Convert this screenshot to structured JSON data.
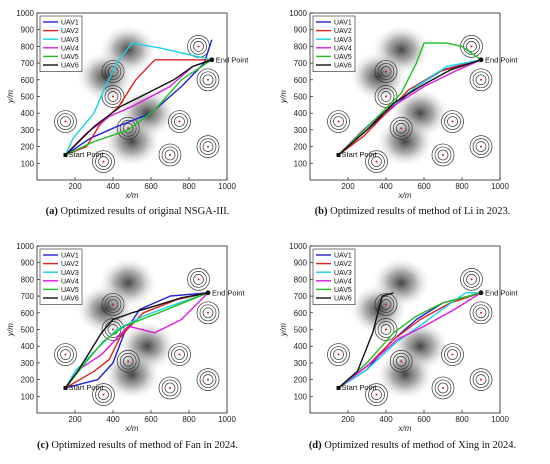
{
  "chart_data": [
    {
      "type": "line",
      "panel_label": "(a)",
      "caption": "Optimized results of original NSGA-III.",
      "xlabel": "x/m",
      "ylabel": "y/m",
      "xlim": [
        0,
        1000
      ],
      "ylim": [
        0,
        1000
      ],
      "xticks": [
        200,
        400,
        600,
        800,
        1000
      ],
      "yticks": [
        100,
        200,
        300,
        400,
        500,
        600,
        700,
        800,
        900,
        1000
      ],
      "start_label": "Start Point",
      "end_label": "End Point",
      "start": [
        150,
        150
      ],
      "end": [
        920,
        720
      ],
      "legend": [
        "UAV1",
        "UAV2",
        "UAV3",
        "UAV4",
        "UAV5",
        "UAV6"
      ],
      "series": [
        {
          "name": "UAV1",
          "color": "#1f1fd6",
          "points": [
            [
              150,
              150
            ],
            [
              280,
              250
            ],
            [
              420,
              320
            ],
            [
              600,
              400
            ],
            [
              760,
              560
            ],
            [
              880,
              700
            ],
            [
              920,
              840
            ]
          ]
        },
        {
          "name": "UAV2",
          "color": "#e02020",
          "points": [
            [
              150,
              150
            ],
            [
              260,
              200
            ],
            [
              330,
              330
            ],
            [
              430,
              440
            ],
            [
              520,
              600
            ],
            [
              620,
              720
            ],
            [
              720,
              720
            ],
            [
              920,
              720
            ]
          ]
        },
        {
          "name": "UAV3",
          "color": "#19d3e6",
          "points": [
            [
              150,
              150
            ],
            [
              190,
              250
            ],
            [
              300,
              400
            ],
            [
              360,
              560
            ],
            [
              420,
              700
            ],
            [
              500,
              820
            ],
            [
              650,
              790
            ],
            [
              920,
              720
            ]
          ]
        },
        {
          "name": "UAV4",
          "color": "#e018e0",
          "points": [
            [
              150,
              150
            ],
            [
              260,
              280
            ],
            [
              380,
              380
            ],
            [
              500,
              440
            ],
            [
              700,
              560
            ],
            [
              820,
              680
            ],
            [
              920,
              720
            ]
          ]
        },
        {
          "name": "UAV5",
          "color": "#20c020",
          "points": [
            [
              150,
              150
            ],
            [
              300,
              230
            ],
            [
              480,
              300
            ],
            [
              620,
              420
            ],
            [
              760,
              600
            ],
            [
              920,
              720
            ]
          ]
        },
        {
          "name": "UAV6",
          "color": "#111111",
          "points": [
            [
              150,
              150
            ],
            [
              300,
              320
            ],
            [
              440,
              440
            ],
            [
              580,
              520
            ],
            [
              720,
              600
            ],
            [
              820,
              680
            ],
            [
              920,
              720
            ]
          ]
        }
      ]
    },
    {
      "type": "line",
      "panel_label": "(b)",
      "caption": "Optimized results of method of Li in 2023.",
      "xlabel": "x/m",
      "ylabel": "y/m",
      "xlim": [
        0,
        1000
      ],
      "ylim": [
        0,
        1000
      ],
      "xticks": [
        200,
        400,
        600,
        800,
        1000
      ],
      "yticks": [
        100,
        200,
        300,
        400,
        500,
        600,
        700,
        800,
        900,
        1000
      ],
      "start_label": "Start Point",
      "end_label": "End Point",
      "start": [
        150,
        150
      ],
      "end": [
        900,
        720
      ],
      "legend": [
        "UAV1",
        "UAV2",
        "UAV3",
        "UAV4",
        "UAV5",
        "UAV6"
      ],
      "series": [
        {
          "name": "UAV1",
          "color": "#1f1fd6",
          "points": [
            [
              150,
              150
            ],
            [
              300,
              300
            ],
            [
              420,
              420
            ],
            [
              560,
              560
            ],
            [
              700,
              660
            ],
            [
              900,
              720
            ]
          ]
        },
        {
          "name": "UAV2",
          "color": "#e02020",
          "points": [
            [
              150,
              150
            ],
            [
              280,
              260
            ],
            [
              400,
              400
            ],
            [
              520,
              540
            ],
            [
              680,
              650
            ],
            [
              900,
              720
            ]
          ]
        },
        {
          "name": "UAV3",
          "color": "#19d3e6",
          "points": [
            [
              150,
              150
            ],
            [
              300,
              320
            ],
            [
              430,
              440
            ],
            [
              560,
              560
            ],
            [
              720,
              680
            ],
            [
              900,
              720
            ]
          ]
        },
        {
          "name": "UAV4",
          "color": "#e018e0",
          "points": [
            [
              150,
              150
            ],
            [
              280,
              300
            ],
            [
              420,
              430
            ],
            [
              600,
              560
            ],
            [
              780,
              660
            ],
            [
              900,
              720
            ]
          ]
        },
        {
          "name": "UAV5",
          "color": "#20c020",
          "points": [
            [
              150,
              150
            ],
            [
              330,
              350
            ],
            [
              480,
              520
            ],
            [
              560,
              700
            ],
            [
              600,
              820
            ],
            [
              720,
              820
            ],
            [
              800,
              800
            ],
            [
              900,
              720
            ]
          ]
        },
        {
          "name": "UAV6",
          "color": "#111111",
          "points": [
            [
              150,
              150
            ],
            [
              300,
              300
            ],
            [
              440,
              460
            ],
            [
              580,
              560
            ],
            [
              740,
              660
            ],
            [
              900,
              720
            ]
          ]
        }
      ]
    },
    {
      "type": "line",
      "panel_label": "(c)",
      "caption": "Optimized results of method of Fan in 2024.",
      "xlabel": "x/m",
      "ylabel": "y/m",
      "xlim": [
        0,
        1000
      ],
      "ylim": [
        0,
        1000
      ],
      "xticks": [
        200,
        400,
        600,
        800,
        1000
      ],
      "yticks": [
        100,
        200,
        300,
        400,
        500,
        600,
        700,
        800,
        900,
        1000
      ],
      "start_label": "Start Point",
      "end_label": "End Point",
      "start": [
        150,
        150
      ],
      "end": [
        900,
        720
      ],
      "legend": [
        "UAV1",
        "UAV2",
        "UAV3",
        "UAV4",
        "UAV5",
        "UAV6"
      ],
      "series": [
        {
          "name": "UAV1",
          "color": "#1f1fd6",
          "points": [
            [
              150,
              150
            ],
            [
              320,
              200
            ],
            [
              400,
              300
            ],
            [
              460,
              480
            ],
            [
              540,
              620
            ],
            [
              700,
              700
            ],
            [
              900,
              720
            ]
          ]
        },
        {
          "name": "UAV2",
          "color": "#e02020",
          "points": [
            [
              150,
              150
            ],
            [
              300,
              250
            ],
            [
              380,
              320
            ],
            [
              440,
              460
            ],
            [
              560,
              600
            ],
            [
              740,
              680
            ],
            [
              900,
              720
            ]
          ]
        },
        {
          "name": "UAV3",
          "color": "#19d3e6",
          "points": [
            [
              150,
              150
            ],
            [
              200,
              250
            ],
            [
              330,
              400
            ],
            [
              420,
              500
            ],
            [
              560,
              580
            ],
            [
              700,
              640
            ],
            [
              900,
              720
            ]
          ]
        },
        {
          "name": "UAV4",
          "color": "#e018e0",
          "points": [
            [
              150,
              150
            ],
            [
              220,
              260
            ],
            [
              340,
              350
            ],
            [
              480,
              520
            ],
            [
              620,
              480
            ],
            [
              760,
              560
            ],
            [
              900,
              720
            ]
          ]
        },
        {
          "name": "UAV5",
          "color": "#20c020",
          "points": [
            [
              150,
              150
            ],
            [
              240,
              280
            ],
            [
              350,
              430
            ],
            [
              460,
              520
            ],
            [
              640,
              600
            ],
            [
              900,
              720
            ]
          ]
        },
        {
          "name": "UAV6",
          "color": "#111111",
          "points": [
            [
              150,
              150
            ],
            [
              220,
              260
            ],
            [
              340,
              480
            ],
            [
              400,
              560
            ],
            [
              500,
              600
            ],
            [
              620,
              640
            ],
            [
              760,
              690
            ],
            [
              900,
              720
            ]
          ]
        }
      ]
    },
    {
      "type": "line",
      "panel_label": "(d)",
      "caption": "Optimized results of method of Xing in 2024.",
      "xlabel": "x/m",
      "ylabel": "y/m",
      "xlim": [
        0,
        1000
      ],
      "ylim": [
        0,
        1000
      ],
      "xticks": [
        200,
        400,
        600,
        800,
        1000
      ],
      "yticks": [
        100,
        200,
        300,
        400,
        500,
        600,
        700,
        800,
        900,
        1000
      ],
      "start_label": "Start Point",
      "end_label": "End Point",
      "start": [
        150,
        150
      ],
      "end": [
        900,
        720
      ],
      "legend": [
        "UAV1",
        "UAV2",
        "UAV3",
        "UAV4",
        "UAV5",
        "UAV6"
      ],
      "series": [
        {
          "name": "UAV1",
          "color": "#1f1fd6",
          "points": [
            [
              150,
              150
            ],
            [
              300,
              260
            ],
            [
              420,
              420
            ],
            [
              560,
              560
            ],
            [
              700,
              660
            ],
            [
              900,
              720
            ]
          ]
        },
        {
          "name": "UAV2",
          "color": "#e02020",
          "points": [
            [
              150,
              150
            ],
            [
              300,
              280
            ],
            [
              440,
              440
            ],
            [
              580,
              560
            ],
            [
              740,
              660
            ],
            [
              900,
              720
            ]
          ]
        },
        {
          "name": "UAV3",
          "color": "#19d3e6",
          "points": [
            [
              150,
              150
            ],
            [
              300,
              260
            ],
            [
              450,
              420
            ],
            [
              600,
              540
            ],
            [
              720,
              640
            ],
            [
              820,
              720
            ],
            [
              900,
              720
            ]
          ]
        },
        {
          "name": "UAV4",
          "color": "#e018e0",
          "points": [
            [
              150,
              150
            ],
            [
              320,
              300
            ],
            [
              460,
              440
            ],
            [
              600,
              520
            ],
            [
              760,
              620
            ],
            [
              900,
              720
            ]
          ]
        },
        {
          "name": "UAV5",
          "color": "#20c020",
          "points": [
            [
              150,
              150
            ],
            [
              300,
              300
            ],
            [
              440,
              480
            ],
            [
              560,
              580
            ],
            [
              700,
              660
            ],
            [
              900,
              720
            ]
          ]
        },
        {
          "name": "UAV6",
          "color": "#111111",
          "points": [
            [
              150,
              150
            ],
            [
              250,
              250
            ],
            [
              330,
              480
            ],
            [
              380,
              700
            ],
            [
              440,
              720
            ]
          ]
        }
      ]
    }
  ],
  "scene": {
    "threat_rings": [
      [
        150,
        350
      ],
      [
        400,
        650
      ],
      [
        400,
        500
      ],
      [
        750,
        350
      ],
      [
        700,
        150
      ],
      [
        900,
        600
      ],
      [
        900,
        200
      ],
      [
        850,
        800
      ],
      [
        350,
        110
      ],
      [
        480,
        310
      ]
    ],
    "clouds": [
      [
        480,
        780
      ],
      [
        580,
        400
      ],
      [
        500,
        230
      ],
      [
        360,
        620
      ]
    ]
  }
}
